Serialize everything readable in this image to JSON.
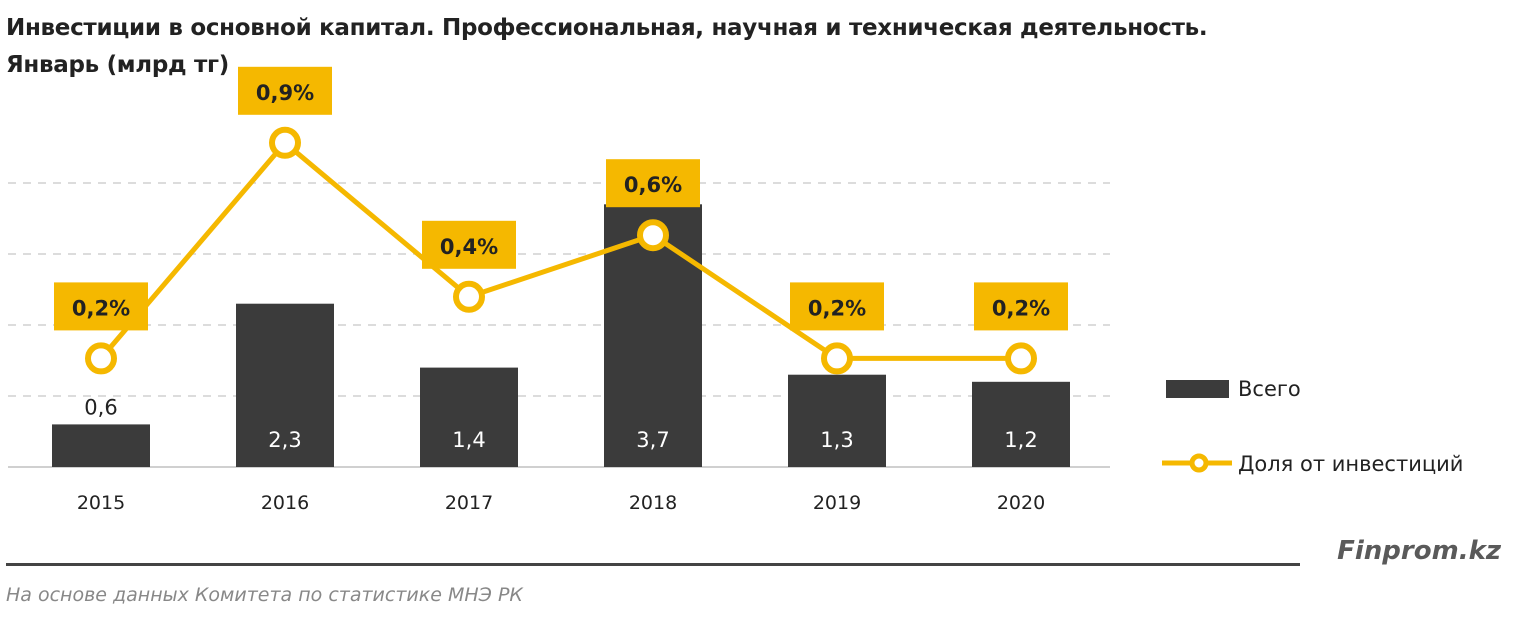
{
  "chart_data": {
    "type": "bar+line",
    "title": "Инвестиции в основной капитал. Профессиональная, научная и техническая деятельность.",
    "subtitle": "Январь (млрд тг)",
    "categories": [
      "2015",
      "2016",
      "2017",
      "2018",
      "2019",
      "2020"
    ],
    "series": [
      {
        "name": "Всего",
        "type": "bar",
        "values": [
          0.6,
          2.3,
          1.4,
          3.7,
          1.3,
          1.2
        ],
        "labels": [
          "0,6",
          "2,3",
          "1,4",
          "3,7",
          "1,3",
          "1,2"
        ],
        "color": "#3b3b3b"
      },
      {
        "name": "Доля от инвестиций",
        "type": "line",
        "values": [
          0.2,
          0.9,
          0.4,
          0.6,
          0.2,
          0.2
        ],
        "labels": [
          "0,2%",
          "0,9%",
          "0,4%",
          "0,6%",
          "0,2%",
          "0,2%"
        ],
        "color": "#f5b800"
      }
    ],
    "ylim": [
      0,
      4
    ],
    "grid": true,
    "legend": "right"
  },
  "footer": {
    "source": "На основе данных  Комитета по статистике МНЭ РК",
    "brand": "Finprom.kz"
  }
}
